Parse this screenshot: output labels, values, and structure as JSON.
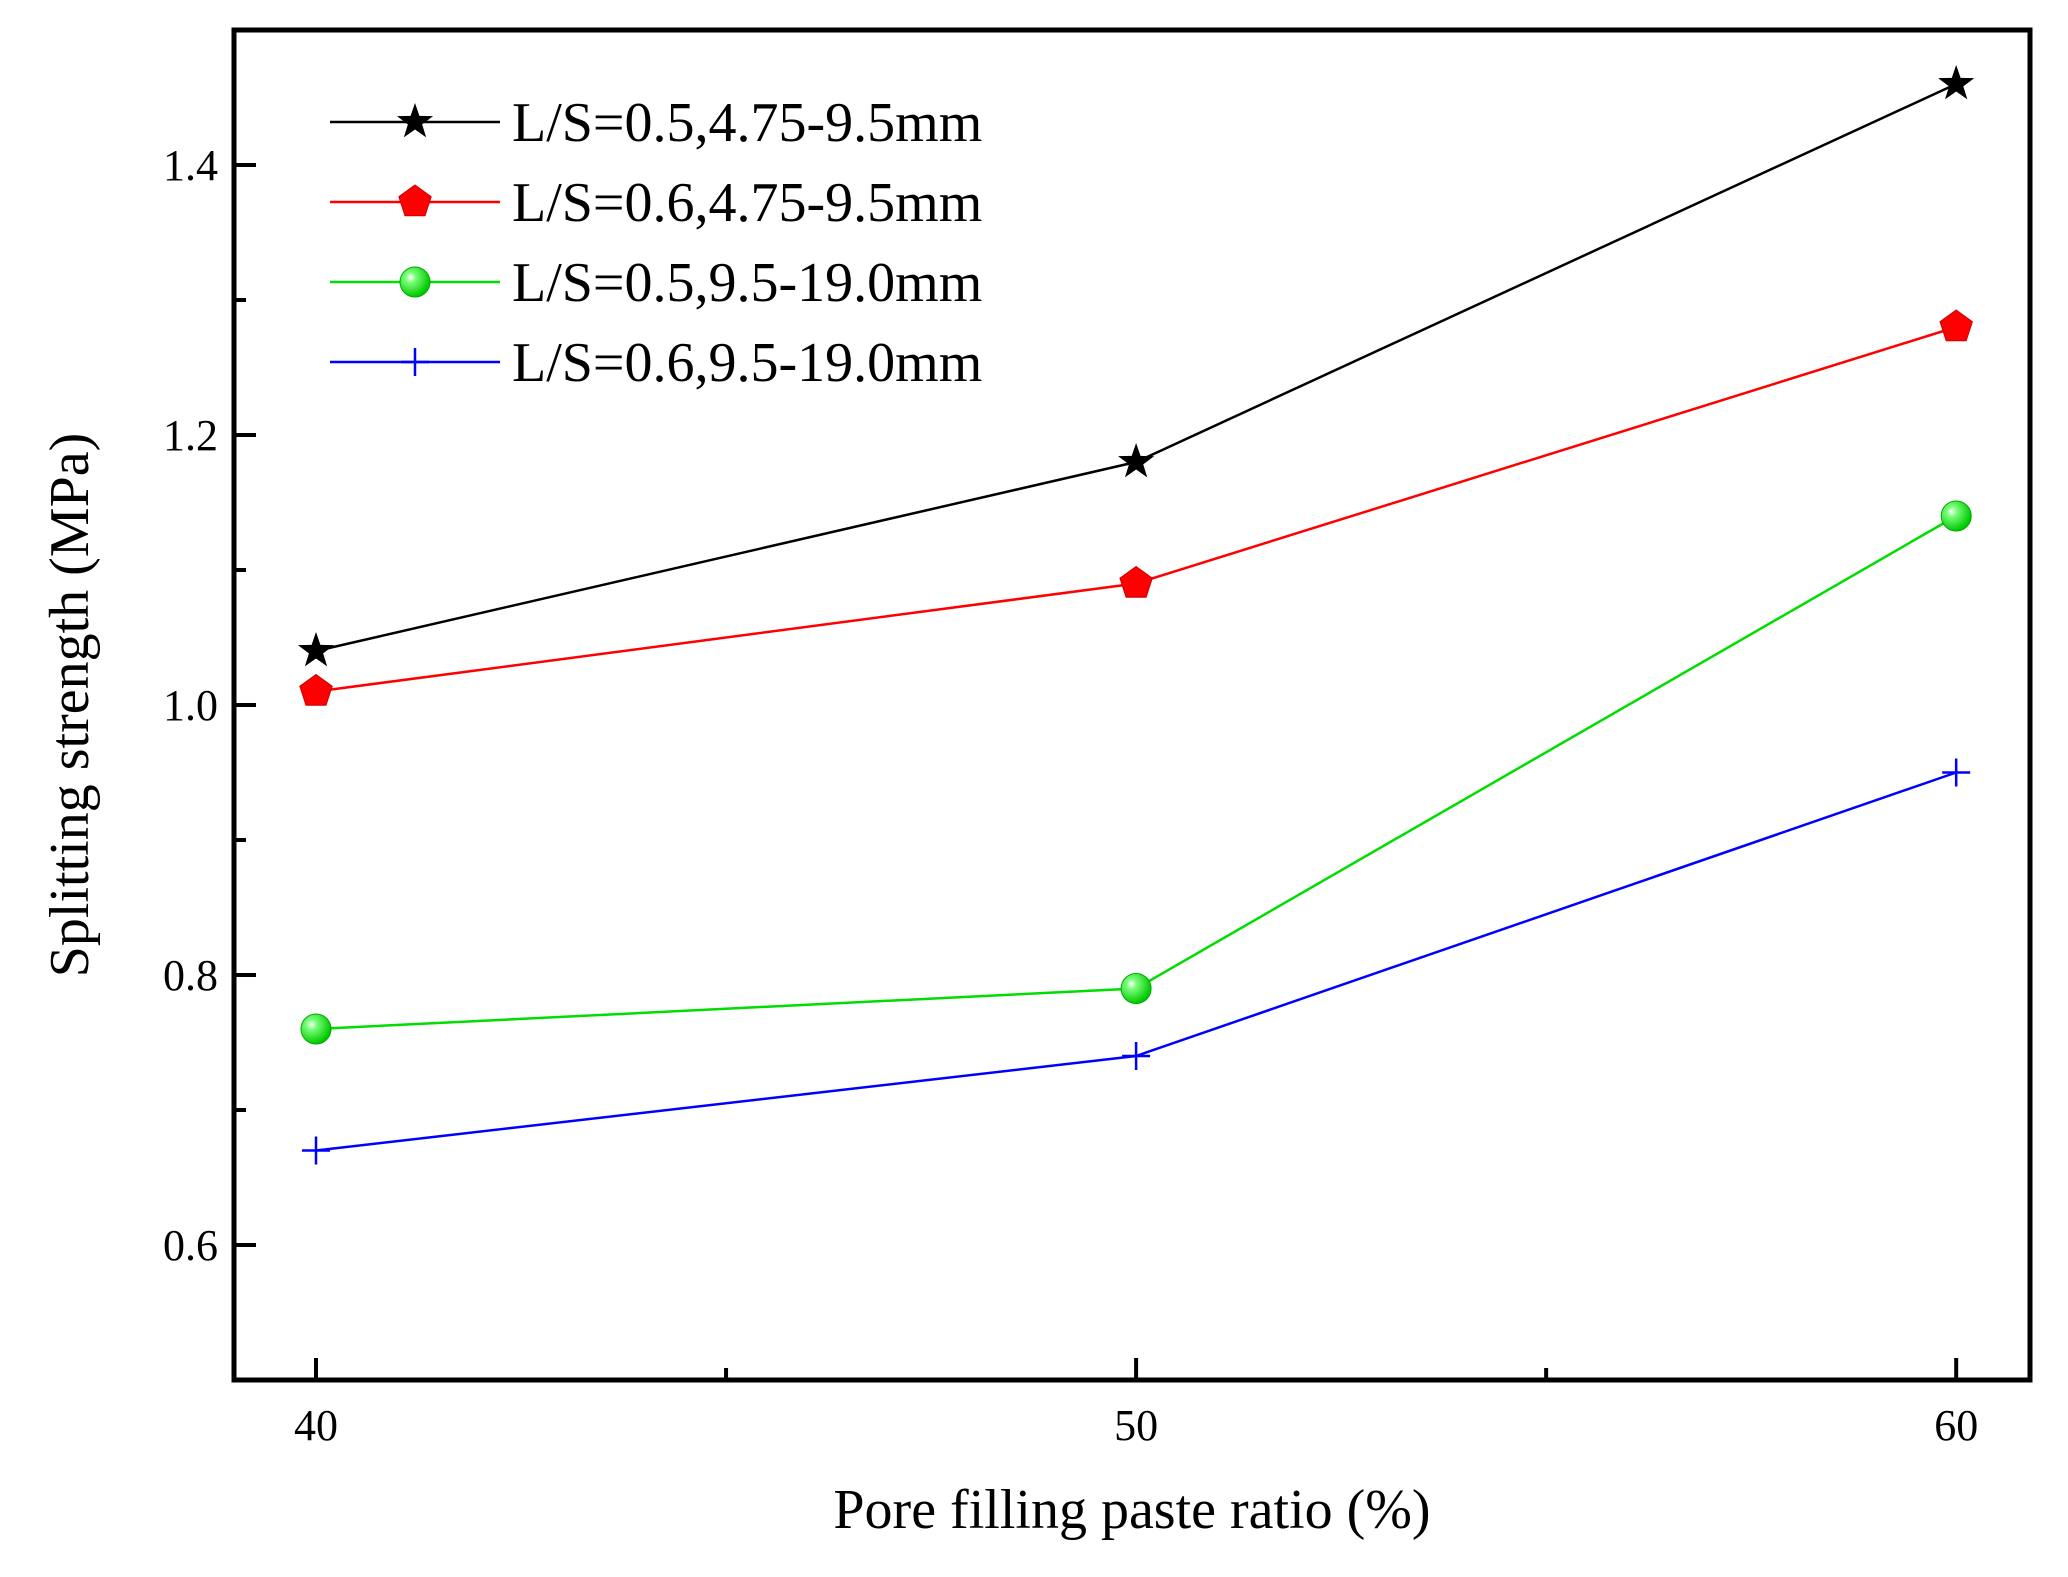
{
  "chart_data": {
    "type": "line",
    "xlabel": "Pore filling paste ratio (%)",
    "ylabel": "Splitting strength (MPa)",
    "x": [
      40,
      50,
      60
    ],
    "xlim": [
      39,
      60.9
    ],
    "ylim": [
      0.5,
      1.5
    ],
    "xticks": [
      40,
      50,
      60
    ],
    "xticks_minor": [
      45,
      55
    ],
    "xtick_labels": [
      "40",
      "50",
      "60"
    ],
    "yticks": [
      0.6,
      0.8,
      1.0,
      1.2,
      1.4
    ],
    "yticks_minor": [
      0.7,
      0.9,
      1.1,
      1.3
    ],
    "ytick_labels": [
      "0.6",
      "0.8",
      "1.0",
      "1.2",
      "1.4"
    ],
    "grid": false,
    "legend_position": "top-left",
    "series": [
      {
        "name": "L/S=0.5,4.75-9.5mm",
        "values": [
          1.04,
          1.18,
          1.46
        ],
        "color": "#000000",
        "marker": "star"
      },
      {
        "name": "L/S=0.6,4.75-9.5mm",
        "values": [
          1.01,
          1.09,
          1.28
        ],
        "color": "#ff0000",
        "marker": "pentagon"
      },
      {
        "name": "L/S=0.5,9.5-19.0mm",
        "values": [
          0.76,
          0.79,
          1.14
        ],
        "color": "#00dd00",
        "marker": "sphere"
      },
      {
        "name": "L/S=0.6,9.5-19.0mm",
        "values": [
          0.67,
          0.74,
          0.95
        ],
        "color": "#0000ff",
        "marker": "plus"
      }
    ]
  }
}
